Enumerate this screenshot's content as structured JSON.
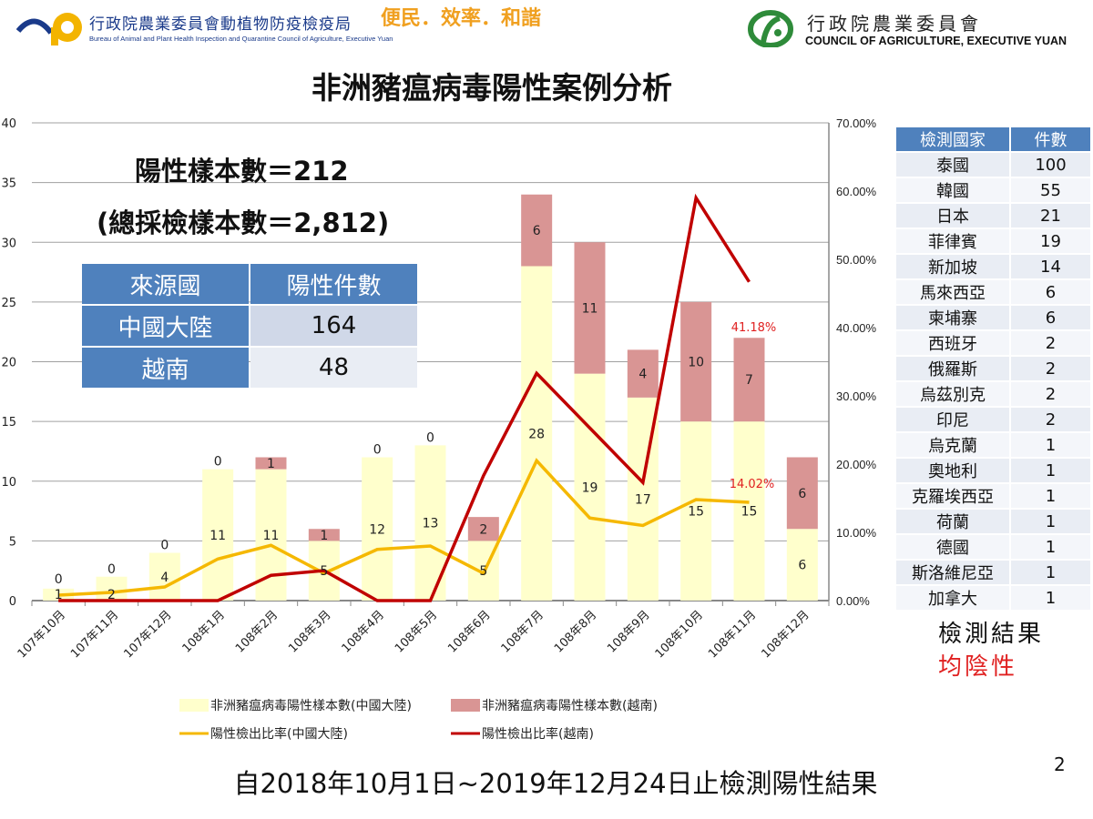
{
  "header": {
    "left_org_cn": "行政院農業委員會動植物防疫檢疫局",
    "left_org_en": "Bureau of Animal and Plant Health Inspection and Quarantine Council of Agriculture, Executive Yuan",
    "slogan": "便民．效率．和諧",
    "right_org_cn": "行政院農業委員會",
    "right_org_en": "COUNCIL OF AGRICULTURE, EXECUTIVE YUAN"
  },
  "title": "非洲豬瘟病毒陽性案例分析",
  "summary": {
    "positive": "陽性樣本數＝212",
    "total": "(總採檢樣本數＝2,812)"
  },
  "source_table": {
    "headers": [
      "來源國",
      "陽性件數"
    ],
    "rows": [
      [
        "中國大陸",
        "164"
      ],
      [
        "越南",
        "48"
      ]
    ]
  },
  "country_table": {
    "headers": [
      "檢測國家",
      "件數"
    ],
    "rows": [
      [
        "泰國",
        "100"
      ],
      [
        "韓國",
        "55"
      ],
      [
        "日本",
        "21"
      ],
      [
        "菲律賓",
        "19"
      ],
      [
        "新加坡",
        "14"
      ],
      [
        "馬來西亞",
        "6"
      ],
      [
        "柬埔寨",
        "6"
      ],
      [
        "西班牙",
        "2"
      ],
      [
        "俄羅斯",
        "2"
      ],
      [
        "烏茲別克",
        "2"
      ],
      [
        "印尼",
        "2"
      ],
      [
        "烏克蘭",
        "1"
      ],
      [
        "奧地利",
        "1"
      ],
      [
        "克羅埃西亞",
        "1"
      ],
      [
        "荷蘭",
        "1"
      ],
      [
        "德國",
        "1"
      ],
      [
        "斯洛維尼亞",
        "1"
      ],
      [
        "加拿大",
        "1"
      ]
    ],
    "result_label": "檢測結果",
    "result_value": "均陰性"
  },
  "chart_data": {
    "type": "bar+line",
    "categories": [
      "107年10月",
      "107年11月",
      "107年12月",
      "108年1月",
      "108年2月",
      "108年3月",
      "108年4月",
      "108年5月",
      "108年6月",
      "108年7月",
      "108年8月",
      "108年9月",
      "108年10月",
      "108年11月",
      "108年12月"
    ],
    "left_axis": {
      "ylim": [
        0,
        40
      ],
      "ticks": [
        "0",
        "5",
        "10",
        "15",
        "20",
        "25",
        "30",
        "35",
        "40"
      ]
    },
    "right_axis": {
      "ylim": [
        0,
        70
      ],
      "ticks": [
        "0.00%",
        "10.00%",
        "20.00%",
        "30.00%",
        "40.00%",
        "50.00%",
        "60.00%",
        "70.00%"
      ]
    },
    "grid": true,
    "legend": "bottom",
    "bar_series": [
      {
        "name": "非洲豬瘟病毒陽性樣本數(中國大陸)",
        "color": "#ffffcc",
        "values": [
          1,
          2,
          4,
          11,
          11,
          5,
          12,
          13,
          5,
          28,
          19,
          17,
          15,
          15,
          6
        ]
      },
      {
        "name": "非洲豬瘟病毒陽性樣本數(越南)",
        "color": "#d99594",
        "values": [
          0,
          0,
          0,
          0,
          1,
          1,
          0,
          0,
          2,
          6,
          11,
          4,
          10,
          7,
          6
        ]
      }
    ],
    "line_series": [
      {
        "name": "陽性檢出比率(中國大陸)",
        "color": "#f5b800",
        "values": [
          0.8,
          1.2,
          2.0,
          6.1,
          8.1,
          4.0,
          7.5,
          8.0,
          4.0,
          20.5,
          12.1,
          11.0,
          14.8,
          14.4,
          null
        ]
      },
      {
        "name": "陽性檢出比率(越南)",
        "color": "#c00000",
        "values": [
          0,
          0,
          0,
          0,
          3.7,
          4.4,
          0,
          0,
          18.3,
          33.3,
          25.3,
          17.3,
          59.0,
          46.7,
          null
        ]
      }
    ],
    "annotations": [
      "41.18%",
      "14.02%"
    ],
    "annotation_color": "#e02020"
  },
  "footer": "自2018年10月1日~2019年12月24日止檢測陽性結果",
  "page_number": "2"
}
